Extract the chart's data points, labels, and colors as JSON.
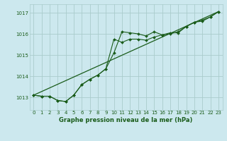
{
  "title": "Graphe pression niveau de la mer (hPa)",
  "bg_color": "#cce8ee",
  "grid_color": "#aacccc",
  "line_color": "#1a5c1a",
  "xlim": [
    -0.5,
    23.5
  ],
  "ylim": [
    1012.4,
    1017.4
  ],
  "yticks": [
    1013,
    1014,
    1015,
    1016,
    1017
  ],
  "xticks": [
    0,
    1,
    2,
    3,
    4,
    5,
    6,
    7,
    8,
    9,
    10,
    11,
    12,
    13,
    14,
    15,
    16,
    17,
    18,
    19,
    20,
    21,
    22,
    23
  ],
  "series1_x": [
    0,
    1,
    2,
    3,
    4,
    5,
    6,
    7,
    8,
    9,
    10,
    11,
    12,
    13,
    14,
    15,
    16,
    17,
    18,
    19,
    20,
    21,
    22,
    23
  ],
  "series1_y": [
    1013.1,
    1013.05,
    1013.05,
    1012.85,
    1012.8,
    1013.1,
    1013.6,
    1013.85,
    1014.05,
    1014.35,
    1015.1,
    1016.1,
    1016.05,
    1016.0,
    1015.9,
    1016.1,
    1015.95,
    1016.05,
    1016.05,
    1016.35,
    1016.55,
    1016.6,
    1016.8,
    1017.05
  ],
  "series2_x": [
    0,
    1,
    2,
    3,
    4,
    5,
    6,
    7,
    8,
    9,
    10,
    11,
    12,
    13,
    14,
    15,
    16,
    17,
    18,
    19,
    20,
    21,
    22,
    23
  ],
  "series2_y": [
    1013.1,
    1013.05,
    1013.05,
    1012.85,
    1012.8,
    1013.1,
    1013.6,
    1013.85,
    1014.05,
    1014.35,
    1015.75,
    1015.6,
    1015.75,
    1015.75,
    1015.7,
    1015.85,
    1015.95,
    1016.0,
    1016.1,
    1016.35,
    1016.55,
    1016.65,
    1016.8,
    1017.05
  ],
  "series3_x": [
    0,
    23
  ],
  "series3_y": [
    1013.1,
    1017.05
  ]
}
